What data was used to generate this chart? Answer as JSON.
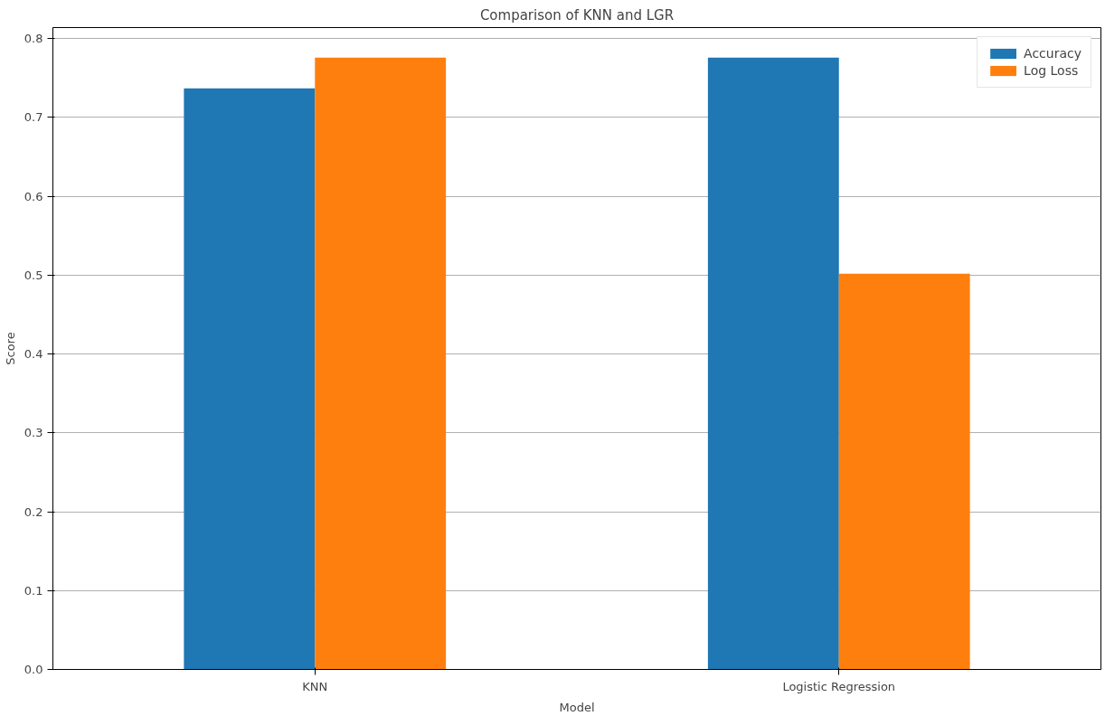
{
  "chart_data": {
    "type": "bar",
    "title": "Comparison of KNN and LGR",
    "xlabel": "Model",
    "ylabel": "Score",
    "categories": [
      "KNN",
      "Logistic Regression"
    ],
    "series": [
      {
        "name": "Accuracy",
        "color": "#1f77b4",
        "values": [
          0.737,
          0.776
        ]
      },
      {
        "name": "Log Loss",
        "color": "#ff7f0e",
        "values": [
          0.776,
          0.502
        ]
      }
    ],
    "ylim": [
      0,
      0.814
    ],
    "yticks": [
      {
        "value": 0,
        "label": "0.0"
      },
      0.1,
      0.2,
      0.3,
      0.4,
      0.5,
      0.6,
      0.7,
      0.8
    ],
    "grid": "y",
    "legend": "top right"
  }
}
